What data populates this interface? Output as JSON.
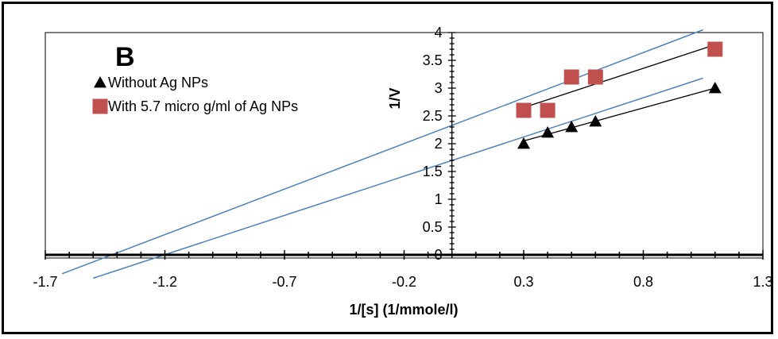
{
  "chart_data": {
    "type": "scatter",
    "panel_label": "B",
    "xlabel": "1/[s] (1/mmole/l)",
    "ylabel": "1/V",
    "xlim": [
      -1.7,
      1.3
    ],
    "ylim": [
      0,
      4
    ],
    "x_ticks": [
      "-1.7",
      "-1.2",
      "-0.7",
      "-0.2",
      "0.3",
      "0.8",
      "1.3"
    ],
    "y_ticks": [
      "0",
      "0.5",
      "1",
      "1.5",
      "2",
      "2.5",
      "3",
      "3.5",
      "4"
    ],
    "grid": false,
    "legend_position": "top-left",
    "series": [
      {
        "name": "Without Ag NPs",
        "marker": "triangle",
        "color": "#000000",
        "x": [
          0.3,
          0.4,
          0.5,
          0.6,
          1.1
        ],
        "y": [
          2.0,
          2.2,
          2.3,
          2.4,
          3.0
        ]
      },
      {
        "name": "With 5.7 micro g/ml of Ag NPs",
        "marker": "square",
        "color": "#c0504d",
        "x": [
          0.3,
          0.4,
          0.5,
          0.6,
          1.1
        ],
        "y": [
          2.6,
          2.6,
          3.2,
          3.2,
          3.7
        ]
      }
    ],
    "trendlines": [
      {
        "series": "Without Ag NPs",
        "color": "#000000",
        "x": [
          0.3,
          1.1
        ],
        "y": [
          2.05,
          3.0
        ]
      },
      {
        "series": "With 5.7 micro g/ml of Ag NPs",
        "color": "#000000",
        "x": [
          0.3,
          1.1
        ],
        "y": [
          2.65,
          3.78
        ]
      }
    ],
    "extrapolation_lines": [
      {
        "color": "#4f81bd",
        "x": [
          -1.5,
          1.05
        ],
        "y": [
          -0.42,
          3.18
        ]
      },
      {
        "color": "#4f81bd",
        "x": [
          -1.63,
          1.05
        ],
        "y": [
          -0.34,
          4.05
        ]
      }
    ]
  }
}
